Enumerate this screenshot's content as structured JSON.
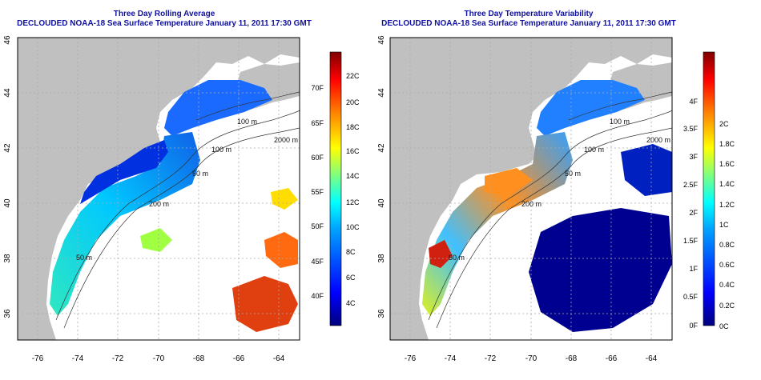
{
  "left_panel": {
    "title1": "Three Day Rolling Average",
    "title2": "DECLOUDED NOAA-18 Sea Surface Temperature January 11, 2011 17:30 GMT",
    "x_ticks": [
      "-76",
      "-74",
      "-72",
      "-70",
      "-68",
      "-66",
      "-64"
    ],
    "y_ticks": [
      "46",
      "44",
      "42",
      "40",
      "38",
      "36"
    ],
    "contour_labels": [
      "100 m",
      "2000 m",
      "100 m",
      "50 m",
      "200 m",
      "50 m"
    ],
    "colorbar": {
      "fahrenheit": [
        "70F",
        "65F",
        "60F",
        "55F",
        "50F",
        "45F",
        "40F"
      ],
      "celsius": [
        "22C",
        "20C",
        "18C",
        "16C",
        "14C",
        "12C",
        "10C",
        "8C",
        "6C",
        "4C"
      ]
    }
  },
  "right_panel": {
    "title1": "Three Day Temperature Variability",
    "title2": "DECLOUDED NOAA-18 Sea Surface Temperature January 11, 2011 17:30 GMT",
    "x_ticks": [
      "-76",
      "-74",
      "-72",
      "-70",
      "-68",
      "-66",
      "-64"
    ],
    "y_ticks": [
      "46",
      "44",
      "42",
      "40",
      "38",
      "36"
    ],
    "contour_labels": [
      "100 m",
      "2000 m",
      "100 m",
      "50 m",
      "200 m",
      "50 m"
    ],
    "colorbar": {
      "fahrenheit": [
        "4F",
        "3.5F",
        "3F",
        "2.5F",
        "2F",
        "1.5F",
        "1F",
        "0.5F",
        "0F"
      ],
      "celsius": [
        "2C",
        "1.8C",
        "1.6C",
        "1.4C",
        "1.2C",
        "1C",
        "0.8C",
        "0.6C",
        "0.4C",
        "0.2C",
        "0C"
      ]
    }
  },
  "colors": {
    "land": "#c0c0c0",
    "title": "#1010a0",
    "grid": "#aaaaaa",
    "colormap": [
      "#00007f",
      "#0000ff",
      "#007fff",
      "#00ffff",
      "#7fff7f",
      "#ffff00",
      "#ff7f00",
      "#ff0000",
      "#7f0000"
    ]
  }
}
